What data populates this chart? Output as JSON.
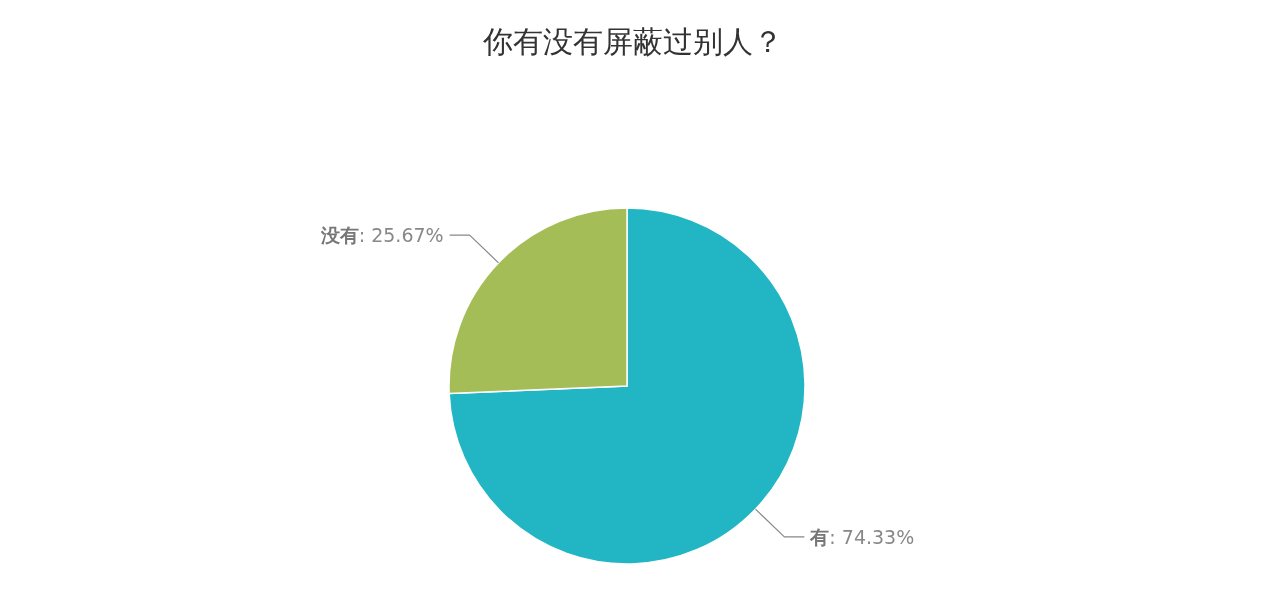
{
  "chart_data": {
    "type": "pie",
    "title": "你有没有屏蔽过别人？",
    "categories": [
      "有",
      "没有"
    ],
    "values": [
      74.33,
      25.67
    ],
    "value_labels": [
      ": 74.33%",
      ": 25.67%"
    ],
    "colors": [
      "#22b5c4",
      "#a5bd57"
    ],
    "legend": false
  }
}
